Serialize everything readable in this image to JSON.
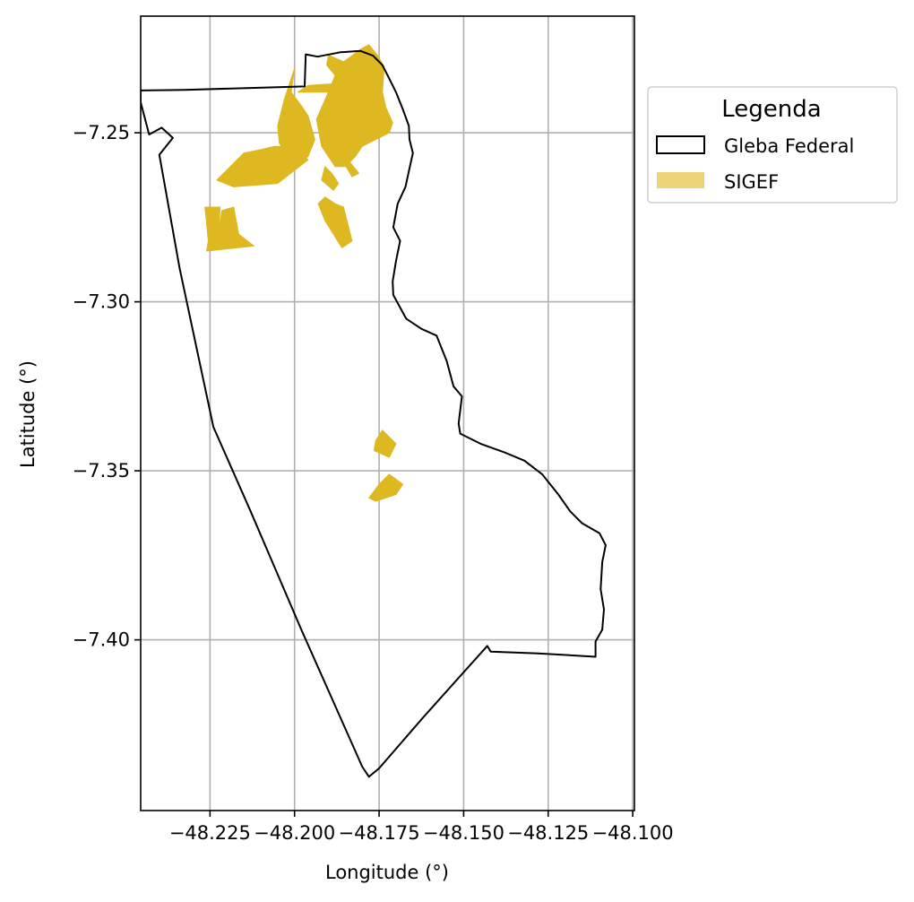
{
  "chart_data": {
    "type": "map",
    "title": "",
    "xlabel": "Longitude (°)",
    "ylabel": "Latitude (°)",
    "xlim": [
      -48.2455,
      -48.0995
    ],
    "ylim": [
      -7.4505,
      -7.2155
    ],
    "grid": true,
    "xticks": [
      -48.225,
      -48.2,
      -48.175,
      -48.15,
      -48.125,
      -48.1
    ],
    "xtick_labels": [
      "−48.225",
      "−48.200",
      "−48.175",
      "−48.150",
      "−48.125",
      "−48.100"
    ],
    "yticks": [
      -7.25,
      -7.3,
      -7.35,
      -7.4
    ],
    "ytick_labels": [
      "−7.25",
      "−7.30",
      "−7.35",
      "−7.40"
    ],
    "legend": {
      "title": "Legenda",
      "placement": "outside-upper-right",
      "entries": [
        {
          "label": "Gleba Federal",
          "style": "outline",
          "color": "#000000"
        },
        {
          "label": "SIGEF",
          "style": "fill",
          "color": "#DDB820"
        }
      ]
    },
    "layers": [
      {
        "name": "Gleba Federal",
        "kind": "boundary",
        "stroke": "#000000",
        "coordinates": [
          [
            -48.2325,
            -7.2373
          ],
          [
            -48.197,
            -7.2363
          ],
          [
            -48.1967,
            -7.2268
          ],
          [
            -48.1932,
            -7.2275
          ],
          [
            -48.1865,
            -7.2262
          ],
          [
            -48.1805,
            -7.2258
          ],
          [
            -48.1768,
            -7.2272
          ],
          [
            -48.174,
            -7.23
          ],
          [
            -48.172,
            -7.234
          ],
          [
            -48.17,
            -7.238
          ],
          [
            -48.168,
            -7.243
          ],
          [
            -48.1662,
            -7.248
          ],
          [
            -48.166,
            -7.252
          ],
          [
            -48.165,
            -7.256
          ],
          [
            -48.166,
            -7.2605
          ],
          [
            -48.1672,
            -7.266
          ],
          [
            -48.1695,
            -7.271
          ],
          [
            -48.1708,
            -7.278
          ],
          [
            -48.1688,
            -7.282
          ],
          [
            -48.17,
            -7.288
          ],
          [
            -48.171,
            -7.294
          ],
          [
            -48.1708,
            -7.298
          ],
          [
            -48.167,
            -7.305
          ],
          [
            -48.1625,
            -7.308
          ],
          [
            -48.158,
            -7.31
          ],
          [
            -48.155,
            -7.3175
          ],
          [
            -48.153,
            -7.325
          ],
          [
            -48.1505,
            -7.328
          ],
          [
            -48.1515,
            -7.336
          ],
          [
            -48.151,
            -7.339
          ],
          [
            -48.145,
            -7.342
          ],
          [
            -48.138,
            -7.3445
          ],
          [
            -48.132,
            -7.347
          ],
          [
            -48.1268,
            -7.351
          ],
          [
            -48.122,
            -7.357
          ],
          [
            -48.1185,
            -7.362
          ],
          [
            -48.115,
            -7.3655
          ],
          [
            -48.1098,
            -7.3685
          ],
          [
            -48.108,
            -7.372
          ],
          [
            -48.109,
            -7.377
          ],
          [
            -48.1095,
            -7.385
          ],
          [
            -48.1085,
            -7.391
          ],
          [
            -48.109,
            -7.397
          ],
          [
            -48.111,
            -7.4005
          ],
          [
            -48.111,
            -7.405
          ],
          [
            -48.128,
            -7.404
          ],
          [
            -48.142,
            -7.4035
          ],
          [
            -48.143,
            -7.4018
          ],
          [
            -48.162,
            -7.423
          ],
          [
            -48.175,
            -7.438
          ],
          [
            -48.178,
            -7.4405
          ],
          [
            -48.18,
            -7.4375
          ],
          [
            -48.198,
            -7.397
          ],
          [
            -48.213,
            -7.362
          ],
          [
            -48.224,
            -7.337
          ],
          [
            -48.234,
            -7.29
          ],
          [
            -48.24,
            -7.2565
          ],
          [
            -48.236,
            -7.2515
          ],
          [
            -48.2393,
            -7.2485
          ],
          [
            -48.243,
            -7.2505
          ],
          [
            -48.2455,
            -7.241
          ],
          [
            -48.2455,
            -7.2375
          ],
          [
            -48.2325,
            -7.2373
          ]
        ]
      },
      {
        "name": "SIGEF",
        "kind": "parcels",
        "fill": "#DDB820",
        "polygons": [
          [
            [
              -48.19,
              -7.227
            ],
            [
              -48.1855,
              -7.229
            ],
            [
              -48.18,
              -7.225
            ],
            [
              -48.178,
              -7.224
            ],
            [
              -48.1755,
              -7.227
            ],
            [
              -48.1735,
              -7.2305
            ],
            [
              -48.174,
              -7.238
            ],
            [
              -48.173,
              -7.2425
            ],
            [
              -48.171,
              -7.247
            ],
            [
              -48.172,
              -7.25
            ],
            [
              -48.18,
              -7.254
            ],
            [
              -48.182,
              -7.257
            ],
            [
              -48.185,
              -7.26
            ],
            [
              -48.188,
              -7.26
            ],
            [
              -48.192,
              -7.254
            ],
            [
              -48.1935,
              -7.246
            ],
            [
              -48.19,
              -7.238
            ],
            [
              -48.188,
              -7.233
            ],
            [
              -48.1905,
              -7.23
            ]
          ],
          [
            [
              -48.201,
              -7.238
            ],
            [
              -48.2,
              -7.231
            ],
            [
              -48.203,
              -7.24
            ],
            [
              -48.205,
              -7.248
            ],
            [
              -48.2045,
              -7.253
            ],
            [
              -48.2,
              -7.26
            ],
            [
              -48.196,
              -7.257
            ],
            [
              -48.194,
              -7.252
            ],
            [
              -48.196,
              -7.245
            ],
            [
              -48.198,
              -7.242
            ]
          ],
          [
            [
              -48.2,
              -7.254
            ],
            [
              -48.196,
              -7.258
            ],
            [
              -48.205,
              -7.265
            ],
            [
              -48.218,
              -7.266
            ],
            [
              -48.223,
              -7.264
            ],
            [
              -48.218,
              -7.259
            ],
            [
              -48.215,
              -7.256
            ],
            [
              -48.21,
              -7.255
            ],
            [
              -48.206,
              -7.254
            ]
          ],
          [
            [
              -48.2265,
              -7.272
            ],
            [
              -48.222,
              -7.272
            ],
            [
              -48.2225,
              -7.28
            ],
            [
              -48.2215,
              -7.273
            ],
            [
              -48.218,
              -7.272
            ],
            [
              -48.2165,
              -7.28
            ],
            [
              -48.212,
              -7.2835
            ],
            [
              -48.226,
              -7.285
            ],
            [
              -48.2255,
              -7.282
            ]
          ],
          [
            [
              -48.191,
              -7.269
            ],
            [
              -48.193,
              -7.271
            ],
            [
              -48.191,
              -7.276
            ],
            [
              -48.186,
              -7.284
            ],
            [
              -48.183,
              -7.282
            ],
            [
              -48.184,
              -7.278
            ],
            [
              -48.1855,
              -7.272
            ],
            [
              -48.188,
              -7.271
            ]
          ],
          [
            [
              -48.191,
              -7.26
            ],
            [
              -48.192,
              -7.264
            ],
            [
              -48.1885,
              -7.267
            ],
            [
              -48.187,
              -7.265
            ],
            [
              -48.189,
              -7.262
            ]
          ],
          [
            [
              -48.186,
              -7.258
            ],
            [
              -48.183,
              -7.263
            ],
            [
              -48.181,
              -7.262
            ],
            [
              -48.185,
              -7.257
            ]
          ],
          [
            [
              -48.189,
              -7.238
            ],
            [
              -48.199,
              -7.238
            ],
            [
              -48.196,
              -7.236
            ],
            [
              -48.188,
              -7.2355
            ]
          ],
          [
            [
              -48.174,
              -7.338
            ],
            [
              -48.17,
              -7.342
            ],
            [
              -48.172,
              -7.346
            ],
            [
              -48.1765,
              -7.344
            ],
            [
              -48.176,
              -7.341
            ]
          ],
          [
            [
              -48.172,
              -7.351
            ],
            [
              -48.168,
              -7.354
            ],
            [
              -48.17,
              -7.357
            ],
            [
              -48.176,
              -7.359
            ],
            [
              -48.178,
              -7.358
            ],
            [
              -48.175,
              -7.354
            ]
          ]
        ]
      }
    ]
  }
}
